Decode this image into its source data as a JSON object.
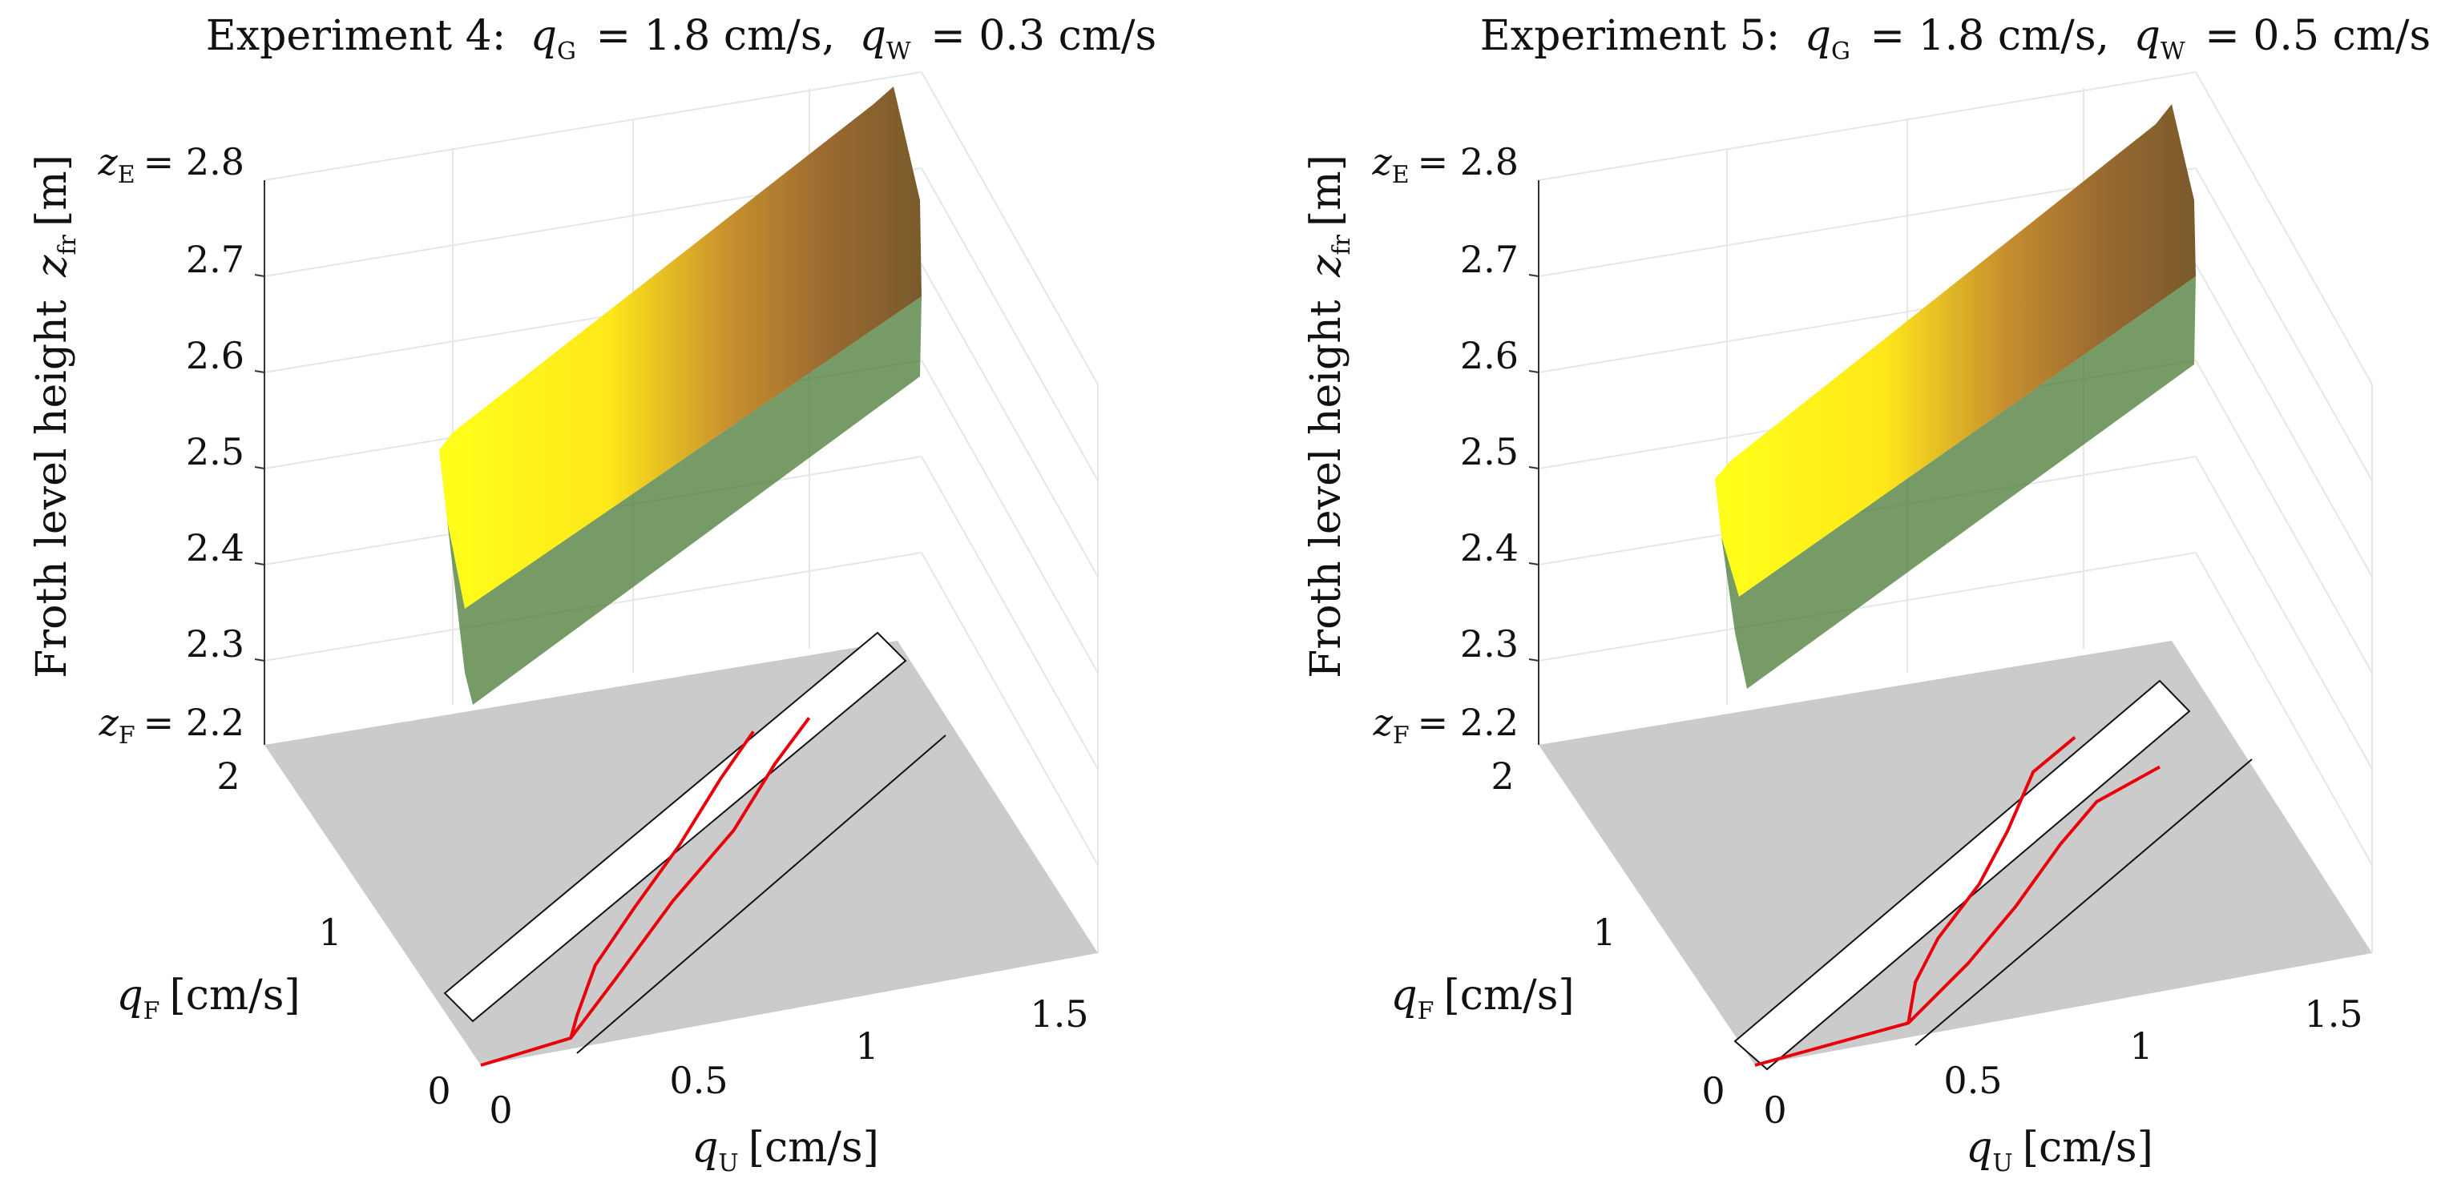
{
  "figure": {
    "panel_count": 2,
    "shared_axes": {
      "zlabel_prefix": "Froth level height",
      "zlabel_var": "z",
      "zlabel_sub": "fr",
      "zlabel_unit": "[m]",
      "xlabel_var": "q",
      "xlabel_sub": "U",
      "xlabel_unit": "[cm/s]",
      "ylabel_var": "q",
      "ylabel_sub": "F",
      "ylabel_unit": "[cm/s]",
      "z_ticks": [
        "2.3",
        "2.4",
        "2.5",
        "2.6",
        "2.7"
      ],
      "z_top_label": "z",
      "z_top_sub": "E",
      "z_top_value": "= 2.8",
      "z_bottom_label": "z",
      "z_bottom_sub": "F",
      "z_bottom_value": "= 2.2",
      "x_ticks": [
        "0",
        "0.5",
        "1",
        "1.5"
      ],
      "y_ticks": [
        "0",
        "1",
        "2"
      ]
    }
  },
  "colors": {
    "surface_top": "#ffff1a",
    "surface_mid": "#b07a3a",
    "surface_low": "#2e7a3a",
    "drip_lines": "#4a9aa6",
    "floor": "#cbcbcb",
    "band": "#ffffff",
    "curves": "#e8000b",
    "axis": "#333333",
    "grid": "#e6e6e6"
  },
  "chart_data": [
    {
      "type": "surface3d",
      "title": {
        "prefix": "Experiment 4:",
        "qG_var": "q",
        "qG_sub": "G",
        "qG_value": "= 1.8 cm/s,",
        "qW_var": "q",
        "qW_sub": "W",
        "qW_value": "= 0.3 cm/s"
      },
      "xlim": [
        0,
        1.6
      ],
      "ylim": [
        0,
        2
      ],
      "zlim": [
        2.2,
        2.8
      ],
      "surface": {
        "z_left": 2.51,
        "z_right": 2.8,
        "drop_fraction": 0.62
      },
      "band": {
        "intercept_low": -0.38,
        "intercept_high": 0.05
      },
      "curves": [
        {
          "name": "lower",
          "points": [
            [
              0,
              0
            ],
            [
              0.25,
              0.06
            ],
            [
              0.45,
              0.35
            ],
            [
              0.7,
              0.72
            ],
            [
              0.95,
              1.05
            ],
            [
              1.15,
              1.38
            ],
            [
              1.3,
              1.6
            ]
          ]
        },
        {
          "name": "upper",
          "points": [
            [
              0.25,
              0.06
            ],
            [
              0.3,
              0.18
            ],
            [
              0.42,
              0.44
            ],
            [
              0.6,
              0.72
            ],
            [
              0.8,
              1.02
            ],
            [
              1.0,
              1.35
            ],
            [
              1.15,
              1.58
            ]
          ]
        }
      ]
    },
    {
      "type": "surface3d",
      "title": {
        "prefix": "Experiment 5:",
        "qG_var": "q",
        "qG_sub": "G",
        "qG_value": "= 1.8 cm/s,",
        "qW_var": "q",
        "qW_sub": "W",
        "qW_value": "= 0.5 cm/s"
      },
      "xlim": [
        0,
        1.6
      ],
      "ylim": [
        0,
        2
      ],
      "zlim": [
        2.2,
        2.8
      ],
      "surface": {
        "z_left": 2.47,
        "z_right": 2.76,
        "drop_fraction": 0.6
      },
      "band": {
        "intercept_low": -0.52,
        "intercept_high": -0.12
      },
      "curves": [
        {
          "name": "lower",
          "points": [
            [
              0,
              0
            ],
            [
              0.42,
              0.08
            ],
            [
              0.65,
              0.35
            ],
            [
              0.85,
              0.62
            ],
            [
              1.05,
              0.92
            ],
            [
              1.2,
              1.12
            ],
            [
              1.4,
              1.25
            ]
          ]
        },
        {
          "name": "upper",
          "points": [
            [
              0.42,
              0.08
            ],
            [
              0.5,
              0.3
            ],
            [
              0.62,
              0.52
            ],
            [
              0.8,
              0.78
            ],
            [
              0.95,
              1.05
            ],
            [
              1.1,
              1.35
            ],
            [
              1.25,
              1.5
            ]
          ]
        }
      ]
    }
  ]
}
